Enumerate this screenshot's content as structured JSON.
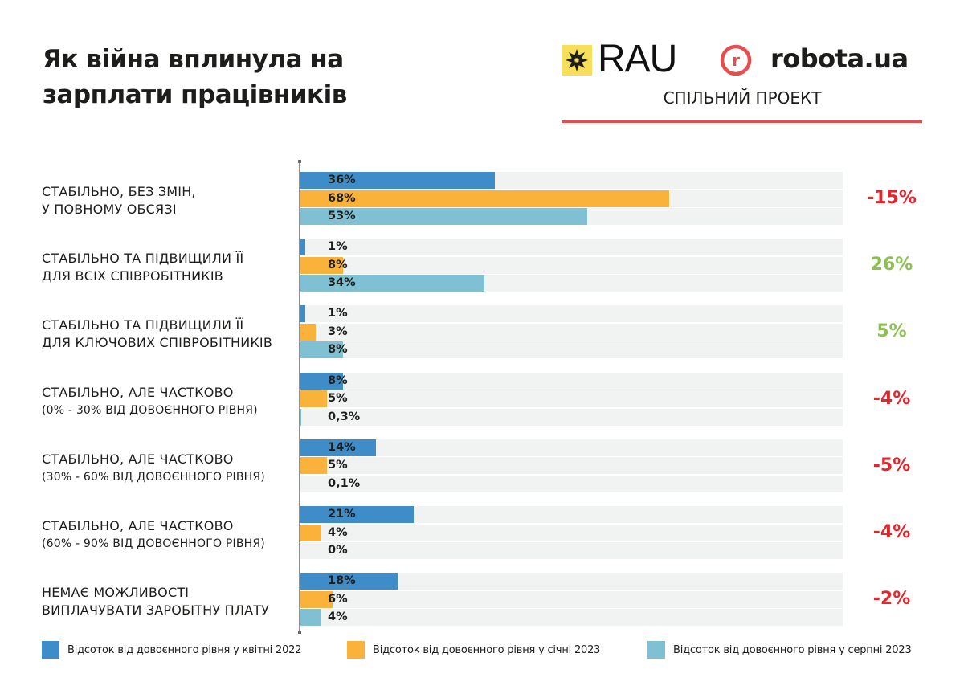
{
  "header": {
    "title_line1": "Як війна вплинула на",
    "title_line2": "зарплати працівників",
    "logo_rau": "RAU",
    "logo_robota": "robota.ua",
    "logo_robota_mark": "r",
    "joint_project": "СПІЛЬНИЙ ПРОЕКТ",
    "colors": {
      "rau_yellow": "#f7df5a",
      "robota_red": "#e74c4f"
    }
  },
  "chart_data": {
    "type": "bar",
    "orientation": "horizontal",
    "title": "Як війна вплинула на зарплати працівників",
    "xlim": [
      0,
      100
    ],
    "grid": false,
    "legend_position": "bottom",
    "categories": [
      {
        "line1": "СТАБІЛЬНО, БЕЗ ЗМІН,",
        "line2": "У ПОВНОМУ ОБСЯЗІ",
        "sub": false
      },
      {
        "line1": "СТАБІЛЬНО ТА ПІДВИЩИЛИ ЇЇ",
        "line2": "ДЛЯ ВСІХ СПІВРОБІТНИКІВ",
        "sub": false
      },
      {
        "line1": "СТАБІЛЬНО ТА ПІДВИЩИЛИ ЇЇ",
        "line2": "ДЛЯ КЛЮЧОВИХ СПІВРОБІТНИКІВ",
        "sub": false
      },
      {
        "line1": "СТАБІЛЬНО, АЛЕ ЧАСТКОВО",
        "line2": "(0% - 30% ВІД ДОВОЄННОГО РІВНЯ)",
        "sub": true
      },
      {
        "line1": "СТАБІЛЬНО, АЛЕ ЧАСТКОВО",
        "line2": "(30% - 60% ВІД ДОВОЄННОГО РІВНЯ)",
        "sub": true
      },
      {
        "line1": "СТАБІЛЬНО, АЛЕ ЧАСТКОВО",
        "line2": "(60% - 90% ВІД ДОВОЄННОГО РІВНЯ)",
        "sub": true
      },
      {
        "line1": "НЕМАЄ МОЖЛИВОСТІ",
        "line2": "ВИПЛАЧУВАТИ ЗАРОБІТНУ ПЛАТУ",
        "sub": false
      }
    ],
    "series": [
      {
        "name": "Відсоток від довоєнного рівня у квітні 2022",
        "color": "#3f8dc8",
        "values": [
          36,
          1,
          1,
          8,
          14,
          21,
          18
        ],
        "labels": [
          "36%",
          "1%",
          "1%",
          "8%",
          "14%",
          "21%",
          "18%"
        ]
      },
      {
        "name": "Відсоток від довоєнного рівня у січні 2023",
        "color": "#fbb23b",
        "values": [
          68,
          8,
          3,
          5,
          5,
          4,
          6
        ],
        "labels": [
          "68%",
          "8%",
          "3%",
          "5%",
          "5%",
          "4%",
          "6%"
        ]
      },
      {
        "name": "Відсоток від довоєнного рівня у серпні 2023",
        "color": "#7fc1d3",
        "values": [
          53,
          34,
          8,
          0.3,
          0.1,
          0,
          4
        ],
        "labels": [
          "53%",
          "34%",
          "8%",
          "0,3%",
          "0,1%",
          "0%",
          "4%"
        ]
      }
    ],
    "changes": [
      {
        "label": "-15%",
        "color": "#e3262d"
      },
      {
        "label": "26%",
        "color": "#8cc152"
      },
      {
        "label": "5%",
        "color": "#8cc152"
      },
      {
        "label": "-4%",
        "color": "#e3262d"
      },
      {
        "label": "-5%",
        "color": "#e3262d"
      },
      {
        "label": "-4%",
        "color": "#e3262d"
      },
      {
        "label": "-2%",
        "color": "#e3262d"
      }
    ]
  }
}
